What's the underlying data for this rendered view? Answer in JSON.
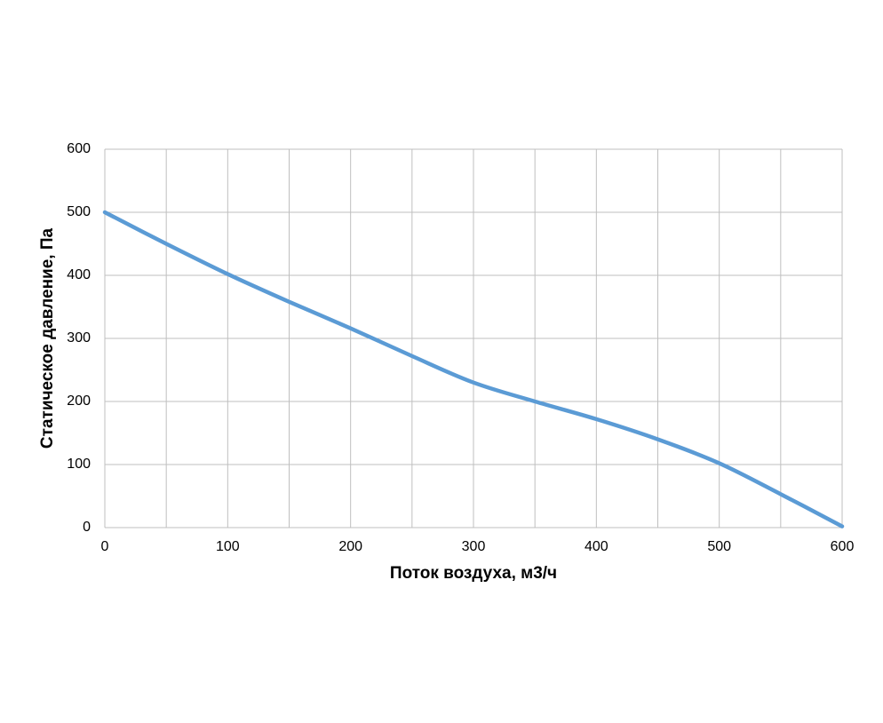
{
  "chart_data": {
    "type": "line",
    "x_label": "Поток воздуха, м3/ч",
    "y_label": "Статическое давление, Па",
    "x": [
      0,
      50,
      100,
      150,
      200,
      250,
      300,
      350,
      400,
      450,
      500,
      550,
      600
    ],
    "series": [
      {
        "color": "#5b9bd5",
        "values": [
          500,
          450,
          402,
          358,
          316,
          272,
          230,
          200,
          172,
          140,
          102,
          53,
          2
        ]
      }
    ],
    "xlim": [
      0,
      600
    ],
    "xticks": [
      0,
      100,
      200,
      300,
      400,
      500,
      600
    ],
    "xgrid": [
      0,
      50,
      100,
      150,
      200,
      250,
      300,
      350,
      400,
      450,
      500,
      550,
      600
    ],
    "ylim": [
      0,
      600
    ],
    "yticks": [
      0,
      100,
      200,
      300,
      400,
      500,
      600
    ],
    "grid": true
  }
}
